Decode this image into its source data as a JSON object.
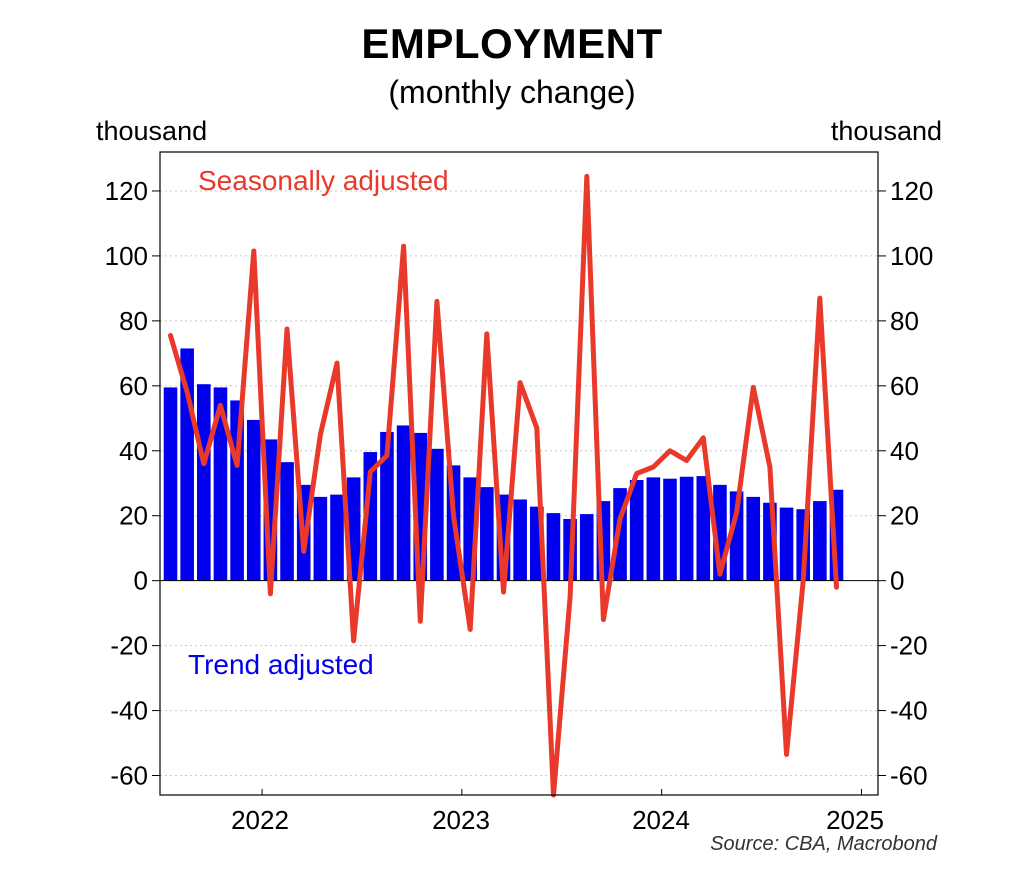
{
  "chart_data": {
    "type": "bar+line",
    "title": "EMPLOYMENT",
    "subtitle": "(monthly change)",
    "ylabel_left": "thousand",
    "ylabel_right": "thousand",
    "source": "Source: CBA, Macrobond",
    "ylim": [
      -66,
      132
    ],
    "yticks": [
      -60,
      -40,
      -20,
      0,
      20,
      40,
      60,
      80,
      100,
      120
    ],
    "xticks": [
      "2022",
      "2023",
      "2024",
      "2025"
    ],
    "grid": true,
    "x_start": "2021-07",
    "series": [
      {
        "name": "Trend adjusted",
        "type": "bar",
        "color": "#0000ee",
        "values": [
          59.5,
          71.5,
          60.5,
          59.5,
          55.5,
          49.5,
          43.5,
          36.5,
          29.5,
          25.8,
          26.5,
          31.8,
          39.6,
          45.8,
          47.8,
          45.5,
          40.6,
          35.5,
          31.8,
          28.8,
          26.5,
          25.0,
          22.8,
          20.8,
          19.0,
          20.5,
          24.5,
          28.5,
          31.0,
          31.8,
          31.4,
          32.0,
          32.2,
          29.5,
          27.5,
          25.8,
          24.0,
          22.5,
          22.0,
          24.5,
          28.0
        ]
      },
      {
        "name": "Seasonally adjusted",
        "type": "line",
        "color": "#e8392b",
        "values": [
          75.5,
          58.0,
          36.0,
          54.0,
          35.5,
          101.5,
          -4.0,
          77.5,
          9.0,
          45.0,
          67.0,
          -18.5,
          33.5,
          38.5,
          103.0,
          -12.5,
          86.0,
          20.0,
          -15.0,
          76.0,
          -3.5,
          61.0,
          47.0,
          -66.0,
          -5.0,
          124.5,
          -12.0,
          19.0,
          33.0,
          35.0,
          40.0,
          37.0,
          44.0,
          2.0,
          21.0,
          59.5,
          35.0,
          -53.5,
          0.0,
          87.0,
          -2.0
        ]
      }
    ]
  }
}
